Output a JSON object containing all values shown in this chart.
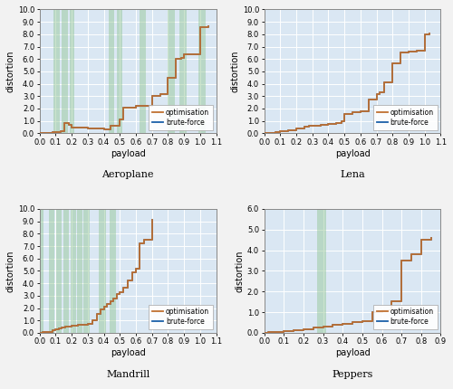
{
  "subplots": [
    {
      "title": "Aeroplane",
      "xlim": [
        0.0,
        1.1
      ],
      "ylim": [
        0.0,
        10.0
      ],
      "xticks": [
        0.0,
        0.1,
        0.2,
        0.3,
        0.4,
        0.5,
        0.6,
        0.7,
        0.8,
        0.9,
        1.0,
        1.1
      ],
      "yticks": [
        0.0,
        1.0,
        2.0,
        3.0,
        4.0,
        5.0,
        6.0,
        7.0,
        8.0,
        9.0,
        10.0
      ],
      "bf_x": [
        0.0,
        0.04,
        0.08,
        0.1,
        0.13,
        0.155,
        0.18,
        0.2,
        0.3,
        0.4,
        0.44,
        0.5,
        0.52,
        0.6,
        0.65,
        0.7,
        0.75,
        0.8,
        0.85,
        0.88,
        0.9,
        1.0,
        1.05
      ],
      "bf_y": [
        0.0,
        0.05,
        0.1,
        0.12,
        0.2,
        0.8,
        0.65,
        0.5,
        0.38,
        0.32,
        0.6,
        1.15,
        2.1,
        2.2,
        2.2,
        3.05,
        3.2,
        4.5,
        6.0,
        6.1,
        6.35,
        8.6,
        8.65
      ],
      "opt_x": [
        0.0,
        0.04,
        0.08,
        0.1,
        0.13,
        0.155,
        0.18,
        0.2,
        0.3,
        0.4,
        0.44,
        0.5,
        0.52,
        0.6,
        0.65,
        0.7,
        0.75,
        0.8,
        0.85,
        0.88,
        0.9,
        1.0,
        1.05
      ],
      "opt_y": [
        0.0,
        0.05,
        0.1,
        0.12,
        0.2,
        0.8,
        0.65,
        0.5,
        0.38,
        0.32,
        0.6,
        1.15,
        2.1,
        2.2,
        2.2,
        3.05,
        3.2,
        4.5,
        6.0,
        6.1,
        6.35,
        8.6,
        8.65
      ],
      "shading": [
        [
          0.085,
          0.125
        ],
        [
          0.14,
          0.175
        ],
        [
          0.19,
          0.215
        ],
        [
          0.43,
          0.465
        ],
        [
          0.48,
          0.515
        ],
        [
          0.62,
          0.66
        ],
        [
          0.8,
          0.845
        ],
        [
          0.87,
          0.915
        ],
        [
          0.99,
          1.035
        ]
      ],
      "legend_loc": "lower right"
    },
    {
      "title": "Lena",
      "xlim": [
        0.0,
        1.1
      ],
      "ylim": [
        0.0,
        10.0
      ],
      "xticks": [
        0.0,
        0.1,
        0.2,
        0.3,
        0.4,
        0.5,
        0.6,
        0.7,
        0.8,
        0.9,
        1.0,
        1.1
      ],
      "yticks": [
        0.0,
        1.0,
        2.0,
        3.0,
        4.0,
        5.0,
        6.0,
        7.0,
        8.0,
        9.0,
        10.0
      ],
      "bf_x": [
        0.0,
        0.03,
        0.07,
        0.1,
        0.15,
        0.2,
        0.25,
        0.28,
        0.3,
        0.35,
        0.4,
        0.45,
        0.48,
        0.5,
        0.55,
        0.6,
        0.65,
        0.7,
        0.72,
        0.75,
        0.8,
        0.85,
        0.9,
        0.95,
        1.0,
        1.03
      ],
      "bf_y": [
        0.0,
        0.05,
        0.1,
        0.18,
        0.28,
        0.42,
        0.52,
        0.6,
        0.62,
        0.68,
        0.72,
        0.8,
        1.0,
        1.55,
        1.7,
        1.75,
        2.7,
        3.2,
        3.3,
        4.1,
        5.65,
        6.5,
        6.6,
        6.65,
        8.0,
        8.05
      ],
      "opt_x": [
        0.0,
        0.03,
        0.07,
        0.1,
        0.15,
        0.2,
        0.25,
        0.28,
        0.3,
        0.35,
        0.4,
        0.45,
        0.48,
        0.5,
        0.55,
        0.6,
        0.65,
        0.7,
        0.72,
        0.75,
        0.8,
        0.85,
        0.9,
        0.95,
        1.0,
        1.03
      ],
      "opt_y": [
        0.0,
        0.05,
        0.1,
        0.18,
        0.28,
        0.42,
        0.52,
        0.6,
        0.62,
        0.68,
        0.72,
        0.8,
        1.0,
        1.55,
        1.7,
        1.75,
        2.7,
        3.2,
        3.3,
        4.1,
        5.65,
        6.5,
        6.6,
        6.65,
        8.0,
        8.05
      ],
      "shading": [],
      "legend_loc": "lower right"
    },
    {
      "title": "Mandrill",
      "xlim": [
        0.0,
        1.1
      ],
      "ylim": [
        0.0,
        10.0
      ],
      "xticks": [
        0.0,
        0.1,
        0.2,
        0.3,
        0.4,
        0.5,
        0.6,
        0.7,
        0.8,
        0.9,
        1.0,
        1.1
      ],
      "yticks": [
        0.0,
        1.0,
        2.0,
        3.0,
        4.0,
        5.0,
        6.0,
        7.0,
        8.0,
        9.0,
        10.0
      ],
      "bf_x": [
        0.0,
        0.02,
        0.05,
        0.08,
        0.1,
        0.12,
        0.14,
        0.16,
        0.18,
        0.2,
        0.22,
        0.24,
        0.26,
        0.28,
        0.3,
        0.33,
        0.36,
        0.38,
        0.4,
        0.42,
        0.44,
        0.46,
        0.48,
        0.5,
        0.52,
        0.55,
        0.58,
        0.6,
        0.625,
        0.65,
        0.7
      ],
      "bf_y": [
        0.0,
        0.05,
        0.1,
        0.2,
        0.28,
        0.35,
        0.42,
        0.47,
        0.52,
        0.56,
        0.6,
        0.63,
        0.65,
        0.68,
        0.72,
        1.0,
        1.5,
        1.9,
        2.1,
        2.35,
        2.55,
        2.8,
        3.1,
        3.3,
        3.65,
        4.2,
        4.9,
        5.2,
        7.2,
        7.5,
        9.15
      ],
      "opt_x": [
        0.0,
        0.02,
        0.05,
        0.08,
        0.1,
        0.12,
        0.14,
        0.16,
        0.18,
        0.2,
        0.22,
        0.24,
        0.26,
        0.28,
        0.3,
        0.33,
        0.36,
        0.38,
        0.4,
        0.42,
        0.44,
        0.46,
        0.48,
        0.5,
        0.52,
        0.55,
        0.58,
        0.6,
        0.625,
        0.65,
        0.7
      ],
      "opt_y": [
        0.0,
        0.05,
        0.1,
        0.2,
        0.28,
        0.35,
        0.42,
        0.47,
        0.52,
        0.56,
        0.6,
        0.63,
        0.65,
        0.68,
        0.72,
        1.0,
        1.5,
        1.9,
        2.1,
        2.35,
        2.55,
        2.8,
        3.1,
        3.3,
        3.65,
        4.2,
        4.9,
        5.2,
        7.2,
        7.5,
        9.15
      ],
      "shading": [
        [
          0.0,
          0.025
        ],
        [
          0.06,
          0.095
        ],
        [
          0.105,
          0.135
        ],
        [
          0.15,
          0.185
        ],
        [
          0.195,
          0.225
        ],
        [
          0.235,
          0.265
        ],
        [
          0.275,
          0.31
        ],
        [
          0.37,
          0.415
        ],
        [
          0.435,
          0.475
        ]
      ],
      "legend_loc": "lower right"
    },
    {
      "title": "Peppers",
      "xlim": [
        0.0,
        0.9
      ],
      "ylim": [
        0.0,
        6.0
      ],
      "xticks": [
        0.0,
        0.1,
        0.2,
        0.3,
        0.4,
        0.5,
        0.6,
        0.7,
        0.8,
        0.9
      ],
      "yticks": [
        0.0,
        1.0,
        2.0,
        3.0,
        4.0,
        5.0,
        6.0
      ],
      "bf_x": [
        0.0,
        0.02,
        0.05,
        0.1,
        0.15,
        0.2,
        0.25,
        0.28,
        0.3,
        0.35,
        0.4,
        0.45,
        0.5,
        0.55,
        0.6,
        0.65,
        0.7,
        0.75,
        0.8,
        0.85
      ],
      "bf_y": [
        0.0,
        0.02,
        0.05,
        0.1,
        0.14,
        0.18,
        0.24,
        0.28,
        0.32,
        0.38,
        0.44,
        0.5,
        0.58,
        1.0,
        1.1,
        1.55,
        3.5,
        3.8,
        4.5,
        4.6
      ],
      "opt_x": [
        0.0,
        0.02,
        0.05,
        0.1,
        0.15,
        0.2,
        0.25,
        0.28,
        0.3,
        0.35,
        0.4,
        0.45,
        0.5,
        0.55,
        0.6,
        0.65,
        0.7,
        0.75,
        0.8,
        0.85
      ],
      "opt_y": [
        0.0,
        0.02,
        0.05,
        0.1,
        0.14,
        0.18,
        0.24,
        0.28,
        0.32,
        0.38,
        0.44,
        0.5,
        0.58,
        1.0,
        1.1,
        1.55,
        3.5,
        3.8,
        4.5,
        4.6
      ],
      "shading": [
        [
          0.27,
          0.315
        ]
      ],
      "legend_loc": "lower right"
    }
  ],
  "bf_color": "#1a5fa8",
  "opt_color": "#c07030",
  "shade_color": "#90c490",
  "shade_alpha": 0.45,
  "bg_color": "#dae7f3",
  "grid_color": "#ffffff",
  "fig_facecolor": "#f2f2f2",
  "legend_labels": [
    "optimisation",
    "brute-force"
  ],
  "tick_fontsize": 6.0,
  "label_fontsize": 7.0,
  "title_fontsize": 8.0,
  "legend_fontsize": 5.5,
  "linewidth": 1.3
}
